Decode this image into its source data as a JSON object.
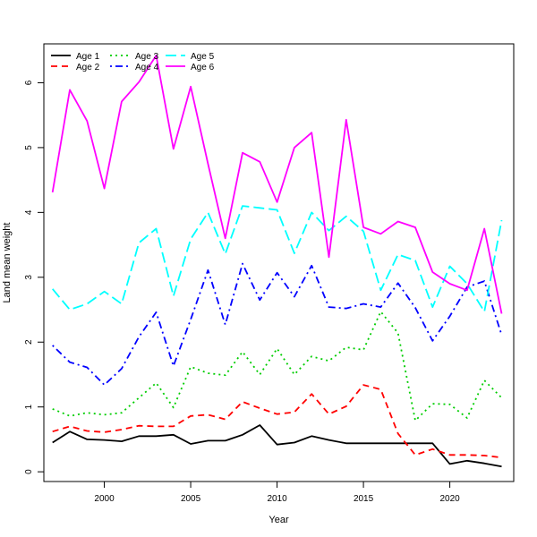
{
  "chart_data": {
    "type": "line",
    "title": "",
    "xlabel": "Year",
    "ylabel": "Land mean weight",
    "xlim": [
      1996.5,
      2023.7
    ],
    "ylim": [
      -0.15,
      6.6
    ],
    "xticks": [
      2000,
      2005,
      2010,
      2015,
      2020
    ],
    "yticks": [
      0,
      1,
      2,
      3,
      4,
      5,
      6
    ],
    "grid": false,
    "legend_placement": "top-left",
    "x": [
      1997,
      1998,
      1999,
      2000,
      2001,
      2002,
      2003,
      2004,
      2005,
      2006,
      2007,
      2008,
      2009,
      2010,
      2011,
      2012,
      2013,
      2014,
      2015,
      2016,
      2017,
      2018,
      2019,
      2020,
      2021,
      2022,
      2023
    ],
    "series": [
      {
        "name": "Age 1",
        "color": "#000000",
        "dash": "solid",
        "values": [
          0.45,
          0.62,
          0.5,
          0.49,
          0.47,
          0.55,
          0.55,
          0.57,
          0.43,
          0.48,
          0.48,
          0.57,
          0.72,
          0.42,
          0.45,
          0.55,
          0.49,
          0.44,
          0.44,
          0.44,
          0.44,
          0.44,
          0.44,
          0.12,
          0.17,
          0.13,
          0.08
        ]
      },
      {
        "name": "Age 2",
        "color": "#ff0000",
        "dash": "dashed",
        "values": [
          0.62,
          0.7,
          0.63,
          0.61,
          0.65,
          0.71,
          0.7,
          0.7,
          0.86,
          0.88,
          0.81,
          1.08,
          0.98,
          0.89,
          0.92,
          1.2,
          0.89,
          1.01,
          1.34,
          1.27,
          0.59,
          0.26,
          0.35,
          0.26,
          0.26,
          0.25,
          0.22
        ]
      },
      {
        "name": "Age 3",
        "color": "#00cd00",
        "dash": "dotted",
        "values": [
          0.97,
          0.86,
          0.91,
          0.88,
          0.91,
          1.14,
          1.37,
          0.99,
          1.62,
          1.52,
          1.49,
          1.85,
          1.5,
          1.9,
          1.5,
          1.78,
          1.71,
          1.92,
          1.88,
          2.47,
          2.14,
          0.79,
          1.05,
          1.04,
          0.83,
          1.41,
          1.14
        ]
      },
      {
        "name": "Age 4",
        "color": "#0000ff",
        "dash": "dotdash",
        "values": [
          1.95,
          1.69,
          1.61,
          1.34,
          1.59,
          2.08,
          2.46,
          1.63,
          2.35,
          3.11,
          2.27,
          3.21,
          2.65,
          3.07,
          2.7,
          3.18,
          2.54,
          2.52,
          2.59,
          2.54,
          2.91,
          2.53,
          2.02,
          2.4,
          2.85,
          2.94,
          2.11
        ]
      },
      {
        "name": "Age 5",
        "color": "#00ffff",
        "dash": "longdash",
        "values": [
          2.82,
          2.5,
          2.59,
          2.78,
          2.59,
          3.53,
          3.75,
          2.71,
          3.59,
          4.0,
          3.36,
          4.1,
          4.07,
          4.04,
          3.37,
          4.0,
          3.72,
          3.94,
          3.71,
          2.8,
          3.35,
          3.26,
          2.54,
          3.17,
          2.9,
          2.47,
          3.88
        ]
      },
      {
        "name": "Age 6",
        "color": "#ff00ff",
        "dash": "solid",
        "values": [
          4.31,
          5.89,
          5.41,
          4.37,
          5.71,
          6.01,
          6.42,
          4.98,
          5.94,
          4.75,
          3.6,
          4.92,
          4.78,
          4.16,
          5.0,
          5.23,
          3.31,
          5.43,
          3.77,
          3.67,
          3.86,
          3.77,
          3.08,
          2.9,
          2.8,
          3.75,
          2.44
        ]
      }
    ]
  }
}
